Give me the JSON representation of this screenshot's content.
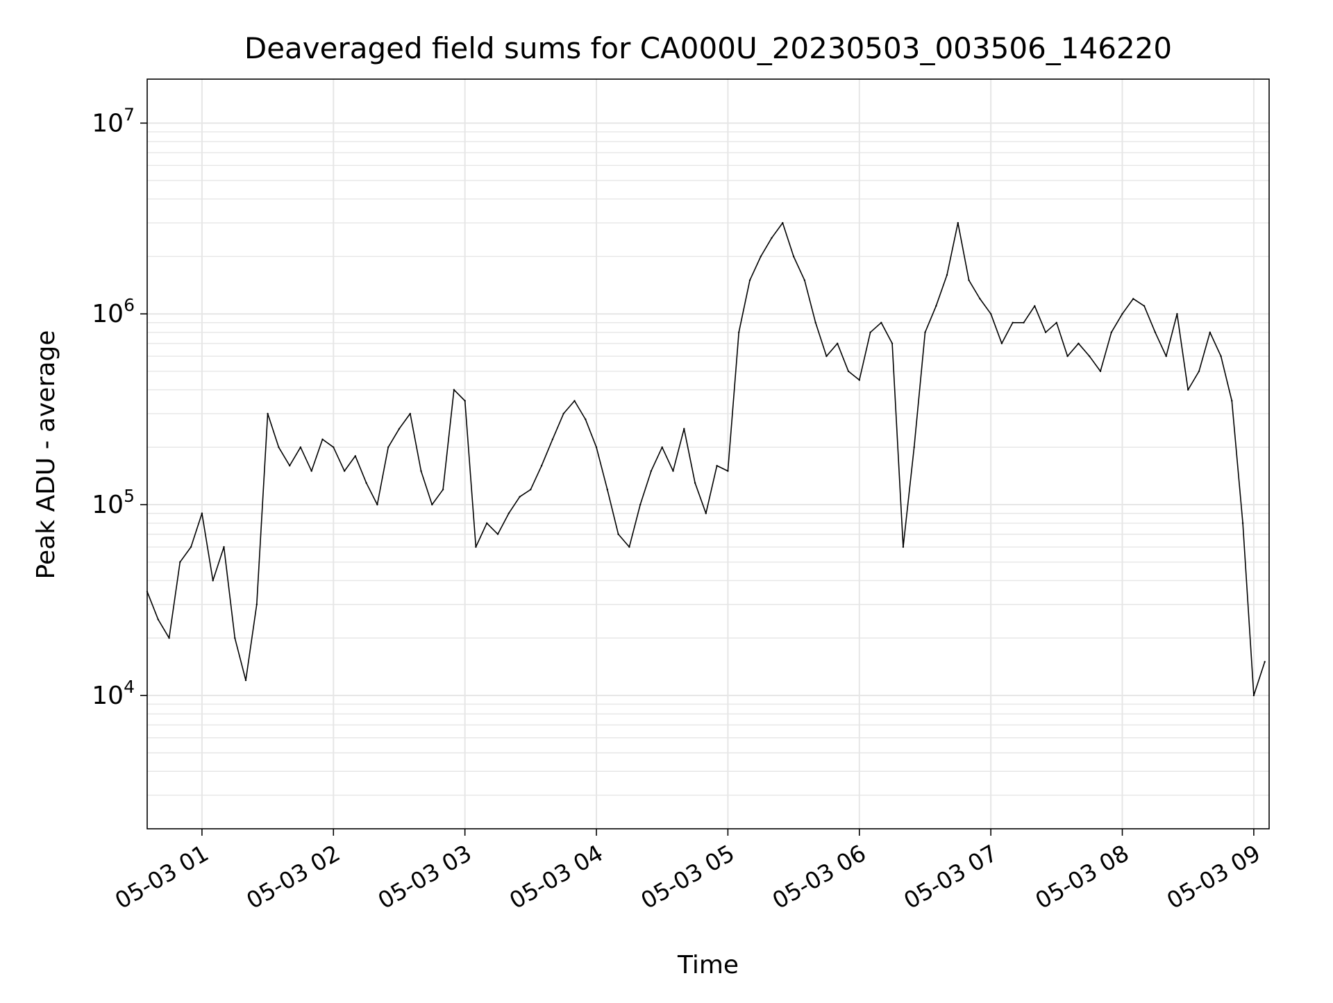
{
  "chart_data": {
    "type": "line",
    "title": "Deaveraged field sums for CA000U_20230503_003506_146220",
    "xlabel": "Time",
    "ylabel": "Peak ADU - average",
    "yscale": "log",
    "grid": "on (major and minor)",
    "line_color": "#000000",
    "grid_color": "#e6e6e6",
    "xlim": [
      "2023-05-03 00:35",
      "2023-05-03 09:07"
    ],
    "ylim": [
      2000,
      17000000
    ],
    "x_ticks": [
      {
        "value": "2023-05-03 01:00",
        "label": "05-03 01"
      },
      {
        "value": "2023-05-03 02:00",
        "label": "05-03 02"
      },
      {
        "value": "2023-05-03 03:00",
        "label": "05-03 03"
      },
      {
        "value": "2023-05-03 04:00",
        "label": "05-03 04"
      },
      {
        "value": "2023-05-03 05:00",
        "label": "05-03 05"
      },
      {
        "value": "2023-05-03 06:00",
        "label": "05-03 06"
      },
      {
        "value": "2023-05-03 07:00",
        "label": "05-03 07"
      },
      {
        "value": "2023-05-03 08:00",
        "label": "05-03 08"
      },
      {
        "value": "2023-05-03 09:00",
        "label": "05-03 09"
      }
    ],
    "y_ticks": [
      {
        "value": 10000,
        "base": "10",
        "exp": "4"
      },
      {
        "value": 100000,
        "base": "10",
        "exp": "5"
      },
      {
        "value": 1000000,
        "base": "10",
        "exp": "6"
      },
      {
        "value": 10000000,
        "base": "10",
        "exp": "7"
      }
    ],
    "series": [
      {
        "x": [
          "2023-05-03 00:35",
          "2023-05-03 00:40",
          "2023-05-03 00:45",
          "2023-05-03 00:50",
          "2023-05-03 00:55",
          "2023-05-03 01:00",
          "2023-05-03 01:05",
          "2023-05-03 01:10",
          "2023-05-03 01:15",
          "2023-05-03 01:20",
          "2023-05-03 01:25",
          "2023-05-03 01:30",
          "2023-05-03 01:35",
          "2023-05-03 01:40",
          "2023-05-03 01:45",
          "2023-05-03 01:50",
          "2023-05-03 01:55",
          "2023-05-03 02:00",
          "2023-05-03 02:05",
          "2023-05-03 02:10",
          "2023-05-03 02:15",
          "2023-05-03 02:20",
          "2023-05-03 02:25",
          "2023-05-03 02:30",
          "2023-05-03 02:35",
          "2023-05-03 02:40",
          "2023-05-03 02:45",
          "2023-05-03 02:50",
          "2023-05-03 02:55",
          "2023-05-03 03:00",
          "2023-05-03 03:05",
          "2023-05-03 03:10",
          "2023-05-03 03:15",
          "2023-05-03 03:20",
          "2023-05-03 03:25",
          "2023-05-03 03:30",
          "2023-05-03 03:35",
          "2023-05-03 03:40",
          "2023-05-03 03:45",
          "2023-05-03 03:50",
          "2023-05-03 03:55",
          "2023-05-03 04:00",
          "2023-05-03 04:05",
          "2023-05-03 04:10",
          "2023-05-03 04:15",
          "2023-05-03 04:20",
          "2023-05-03 04:25",
          "2023-05-03 04:30",
          "2023-05-03 04:35",
          "2023-05-03 04:40",
          "2023-05-03 04:45",
          "2023-05-03 04:50",
          "2023-05-03 04:55",
          "2023-05-03 05:00",
          "2023-05-03 05:05",
          "2023-05-03 05:10",
          "2023-05-03 05:15",
          "2023-05-03 05:20",
          "2023-05-03 05:25",
          "2023-05-03 05:30",
          "2023-05-03 05:35",
          "2023-05-03 05:40",
          "2023-05-03 05:45",
          "2023-05-03 05:50",
          "2023-05-03 05:55",
          "2023-05-03 06:00",
          "2023-05-03 06:05",
          "2023-05-03 06:10",
          "2023-05-03 06:15",
          "2023-05-03 06:20",
          "2023-05-03 06:25",
          "2023-05-03 06:30",
          "2023-05-03 06:35",
          "2023-05-03 06:40",
          "2023-05-03 06:45",
          "2023-05-03 06:50",
          "2023-05-03 06:55",
          "2023-05-03 07:00",
          "2023-05-03 07:05",
          "2023-05-03 07:10",
          "2023-05-03 07:15",
          "2023-05-03 07:20",
          "2023-05-03 07:25",
          "2023-05-03 07:30",
          "2023-05-03 07:35",
          "2023-05-03 07:40",
          "2023-05-03 07:45",
          "2023-05-03 07:50",
          "2023-05-03 07:55",
          "2023-05-03 08:00",
          "2023-05-03 08:05",
          "2023-05-03 08:10",
          "2023-05-03 08:15",
          "2023-05-03 08:20",
          "2023-05-03 08:25",
          "2023-05-03 08:30",
          "2023-05-03 08:35",
          "2023-05-03 08:40",
          "2023-05-03 08:45",
          "2023-05-03 08:50",
          "2023-05-03 08:55",
          "2023-05-03 09:00",
          "2023-05-03 09:05"
        ],
        "values": [
          35000,
          25000,
          20000,
          50000,
          60000,
          90000,
          40000,
          60000,
          20000,
          12000,
          30000,
          300000,
          200000,
          160000,
          200000,
          150000,
          220000,
          200000,
          150000,
          180000,
          130000,
          100000,
          200000,
          250000,
          300000,
          150000,
          100000,
          120000,
          400000,
          350000,
          60000,
          80000,
          70000,
          90000,
          110000,
          120000,
          160000,
          220000,
          300000,
          350000,
          280000,
          200000,
          120000,
          70000,
          60000,
          100000,
          150000,
          200000,
          150000,
          250000,
          130000,
          90000,
          160000,
          150000,
          800000,
          1500000,
          2000000,
          2500000,
          3000000,
          2000000,
          1500000,
          900000,
          600000,
          700000,
          500000,
          450000,
          800000,
          900000,
          700000,
          60000,
          200000,
          800000,
          1100000,
          1600000,
          3000000,
          1500000,
          1200000,
          1000000,
          700000,
          900000,
          900000,
          1100000,
          800000,
          900000,
          600000,
          700000,
          600000,
          500000,
          800000,
          1000000,
          1200000,
          1100000,
          800000,
          600000,
          1000000,
          400000,
          500000,
          800000,
          600000,
          350000,
          80000,
          10000,
          15000
        ]
      }
    ]
  }
}
